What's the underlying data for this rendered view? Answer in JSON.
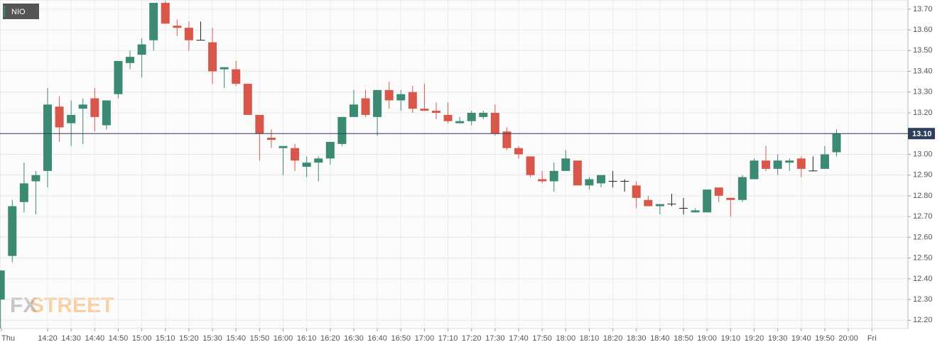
{
  "chart_data": {
    "type": "candlestick",
    "watermark": {
      "fx": "FX",
      "street": "STREET"
    },
    "x": [
      "14:00",
      "14:05",
      "14:10",
      "14:15",
      "14:20",
      "14:25",
      "14:30",
      "14:35",
      "14:40",
      "14:45",
      "14:50",
      "14:55",
      "15:00",
      "15:05",
      "15:10",
      "15:15",
      "15:20",
      "15:25",
      "15:30",
      "15:35",
      "15:40",
      "15:45",
      "15:50",
      "15:55",
      "16:00",
      "16:05",
      "16:10",
      "16:15",
      "16:20",
      "16:25",
      "16:30",
      "16:35",
      "16:40",
      "16:45",
      "16:50",
      "16:55",
      "17:00",
      "17:05",
      "17:10",
      "17:15",
      "17:20",
      "17:25",
      "17:30",
      "17:35",
      "17:40",
      "17:45",
      "17:50",
      "17:55",
      "18:00",
      "18:05",
      "18:10",
      "18:15",
      "18:20",
      "18:25",
      "18:30",
      "18:35",
      "18:40",
      "18:45",
      "18:50",
      "18:55",
      "19:00",
      "19:05",
      "19:10",
      "19:15",
      "19:20",
      "19:25",
      "19:30",
      "19:35",
      "19:40",
      "19:45",
      "19:50",
      "19:55"
    ],
    "series": [
      {
        "name": "NIO",
        "up_color": "#3b8a74",
        "down_color": "#d9574a",
        "doji_color": "#222222",
        "open": [
          12.3,
          12.51,
          12.77,
          12.87,
          12.92,
          13.23,
          13.15,
          13.22,
          13.27,
          13.14,
          13.29,
          13.44,
          13.48,
          13.55,
          13.73,
          13.62,
          13.61,
          13.55,
          13.54,
          13.41,
          13.41,
          13.34,
          13.19,
          13.08,
          13.03,
          13.03,
          12.94,
          12.96,
          12.98,
          13.05,
          13.18,
          13.27,
          13.18,
          13.31,
          13.26,
          13.3,
          13.22,
          13.21,
          13.19,
          13.15,
          13.16,
          13.18,
          13.2,
          13.11,
          13.03,
          12.99,
          12.88,
          12.87,
          12.92,
          12.97,
          12.85,
          12.86,
          12.87,
          12.87,
          12.85,
          12.78,
          12.75,
          12.76,
          12.74,
          12.72,
          12.72,
          12.84,
          12.79,
          12.78,
          12.88,
          12.97,
          12.93,
          12.96,
          12.98,
          12.92,
          12.93,
          13.01
        ],
        "high": [
          12.44,
          12.78,
          12.96,
          12.92,
          13.32,
          13.28,
          13.26,
          13.27,
          13.32,
          13.26,
          13.45,
          13.5,
          13.56,
          13.73,
          13.74,
          13.65,
          13.64,
          13.64,
          13.61,
          13.42,
          13.45,
          13.34,
          13.19,
          13.12,
          13.04,
          13.05,
          12.99,
          12.99,
          13.06,
          13.18,
          13.31,
          13.31,
          13.31,
          13.35,
          13.31,
          13.33,
          13.34,
          13.25,
          13.25,
          13.18,
          13.21,
          13.21,
          13.24,
          13.13,
          13.04,
          12.99,
          12.92,
          12.96,
          13.02,
          12.97,
          12.89,
          12.9,
          12.92,
          12.88,
          12.87,
          12.8,
          12.76,
          12.81,
          12.79,
          12.74,
          12.83,
          12.84,
          12.79,
          12.9,
          12.98,
          13.04,
          13.0,
          12.98,
          12.99,
          12.99,
          13.04,
          13.12
        ],
        "low": [
          12.16,
          12.48,
          12.72,
          12.71,
          12.84,
          13.06,
          13.04,
          13.05,
          13.11,
          13.12,
          13.27,
          13.41,
          13.37,
          13.5,
          13.63,
          13.57,
          13.5,
          13.55,
          13.34,
          13.32,
          13.33,
          13.19,
          12.97,
          13.03,
          12.9,
          12.92,
          12.89,
          12.87,
          12.95,
          13.04,
          13.18,
          13.18,
          13.09,
          13.22,
          13.21,
          13.2,
          13.21,
          13.17,
          13.15,
          13.15,
          13.14,
          13.17,
          13.09,
          13.02,
          12.98,
          12.89,
          12.86,
          12.82,
          12.92,
          12.85,
          12.83,
          12.84,
          12.84,
          12.82,
          12.74,
          12.75,
          12.71,
          12.75,
          12.71,
          12.72,
          12.72,
          12.77,
          12.7,
          12.77,
          12.88,
          12.92,
          12.9,
          12.92,
          12.89,
          12.92,
          12.93,
          12.99
        ],
        "close": [
          12.44,
          12.75,
          12.86,
          12.9,
          13.24,
          13.13,
          13.19,
          13.24,
          13.18,
          13.26,
          13.45,
          13.47,
          13.53,
          13.73,
          13.63,
          13.61,
          13.55,
          13.55,
          13.4,
          13.42,
          13.34,
          13.19,
          13.1,
          13.07,
          13.04,
          12.97,
          12.96,
          12.98,
          13.06,
          13.18,
          13.24,
          13.19,
          13.31,
          13.26,
          13.29,
          13.22,
          13.21,
          13.2,
          13.16,
          13.16,
          13.2,
          13.2,
          13.1,
          13.03,
          13.0,
          12.9,
          12.87,
          12.92,
          12.98,
          12.85,
          12.88,
          12.9,
          12.87,
          12.87,
          12.79,
          12.75,
          12.76,
          12.76,
          12.74,
          12.73,
          12.83,
          12.8,
          12.78,
          12.89,
          12.97,
          12.93,
          12.97,
          12.97,
          12.93,
          12.92,
          13.0,
          13.1
        ]
      }
    ],
    "last_price": {
      "value": 13.1,
      "label": "13.10"
    },
    "last_color": "#2c3e5c",
    "ylim": [
      12.16,
      13.744
    ],
    "yticks": [
      {
        "value": 12.2,
        "label": "12.20"
      },
      {
        "value": 12.3,
        "label": "12.30"
      },
      {
        "value": 12.4,
        "label": "12.40"
      },
      {
        "value": 12.5,
        "label": "12.50"
      },
      {
        "value": 12.6,
        "label": "12.60"
      },
      {
        "value": 12.7,
        "label": "12.70"
      },
      {
        "value": 12.8,
        "label": "12.80"
      },
      {
        "value": 12.9,
        "label": "12.90"
      },
      {
        "value": 13.0,
        "label": "13.00"
      },
      {
        "value": 13.1,
        "label": "13.10"
      },
      {
        "value": 13.2,
        "label": "13.20"
      },
      {
        "value": 13.3,
        "label": "13.30"
      },
      {
        "value": 13.4,
        "label": "13.40"
      },
      {
        "value": 13.5,
        "label": "13.50"
      },
      {
        "value": 13.6,
        "label": "13.60"
      },
      {
        "value": 13.7,
        "label": "13.70"
      }
    ],
    "xticks": [
      "Thu",
      "14:20",
      "14:30",
      "14:40",
      "14:50",
      "15:00",
      "15:10",
      "15:20",
      "15:30",
      "15:40",
      "15:50",
      "16:00",
      "16:10",
      "16:20",
      "16:30",
      "16:40",
      "16:50",
      "17:00",
      "17:10",
      "17:20",
      "17:30",
      "17:40",
      "17:50",
      "18:00",
      "18:10",
      "18:20",
      "18:30",
      "18:40",
      "18:50",
      "19:00",
      "19:10",
      "19:20",
      "19:30",
      "19:40",
      "19:50",
      "20:00",
      "Fri"
    ],
    "grid": true
  }
}
